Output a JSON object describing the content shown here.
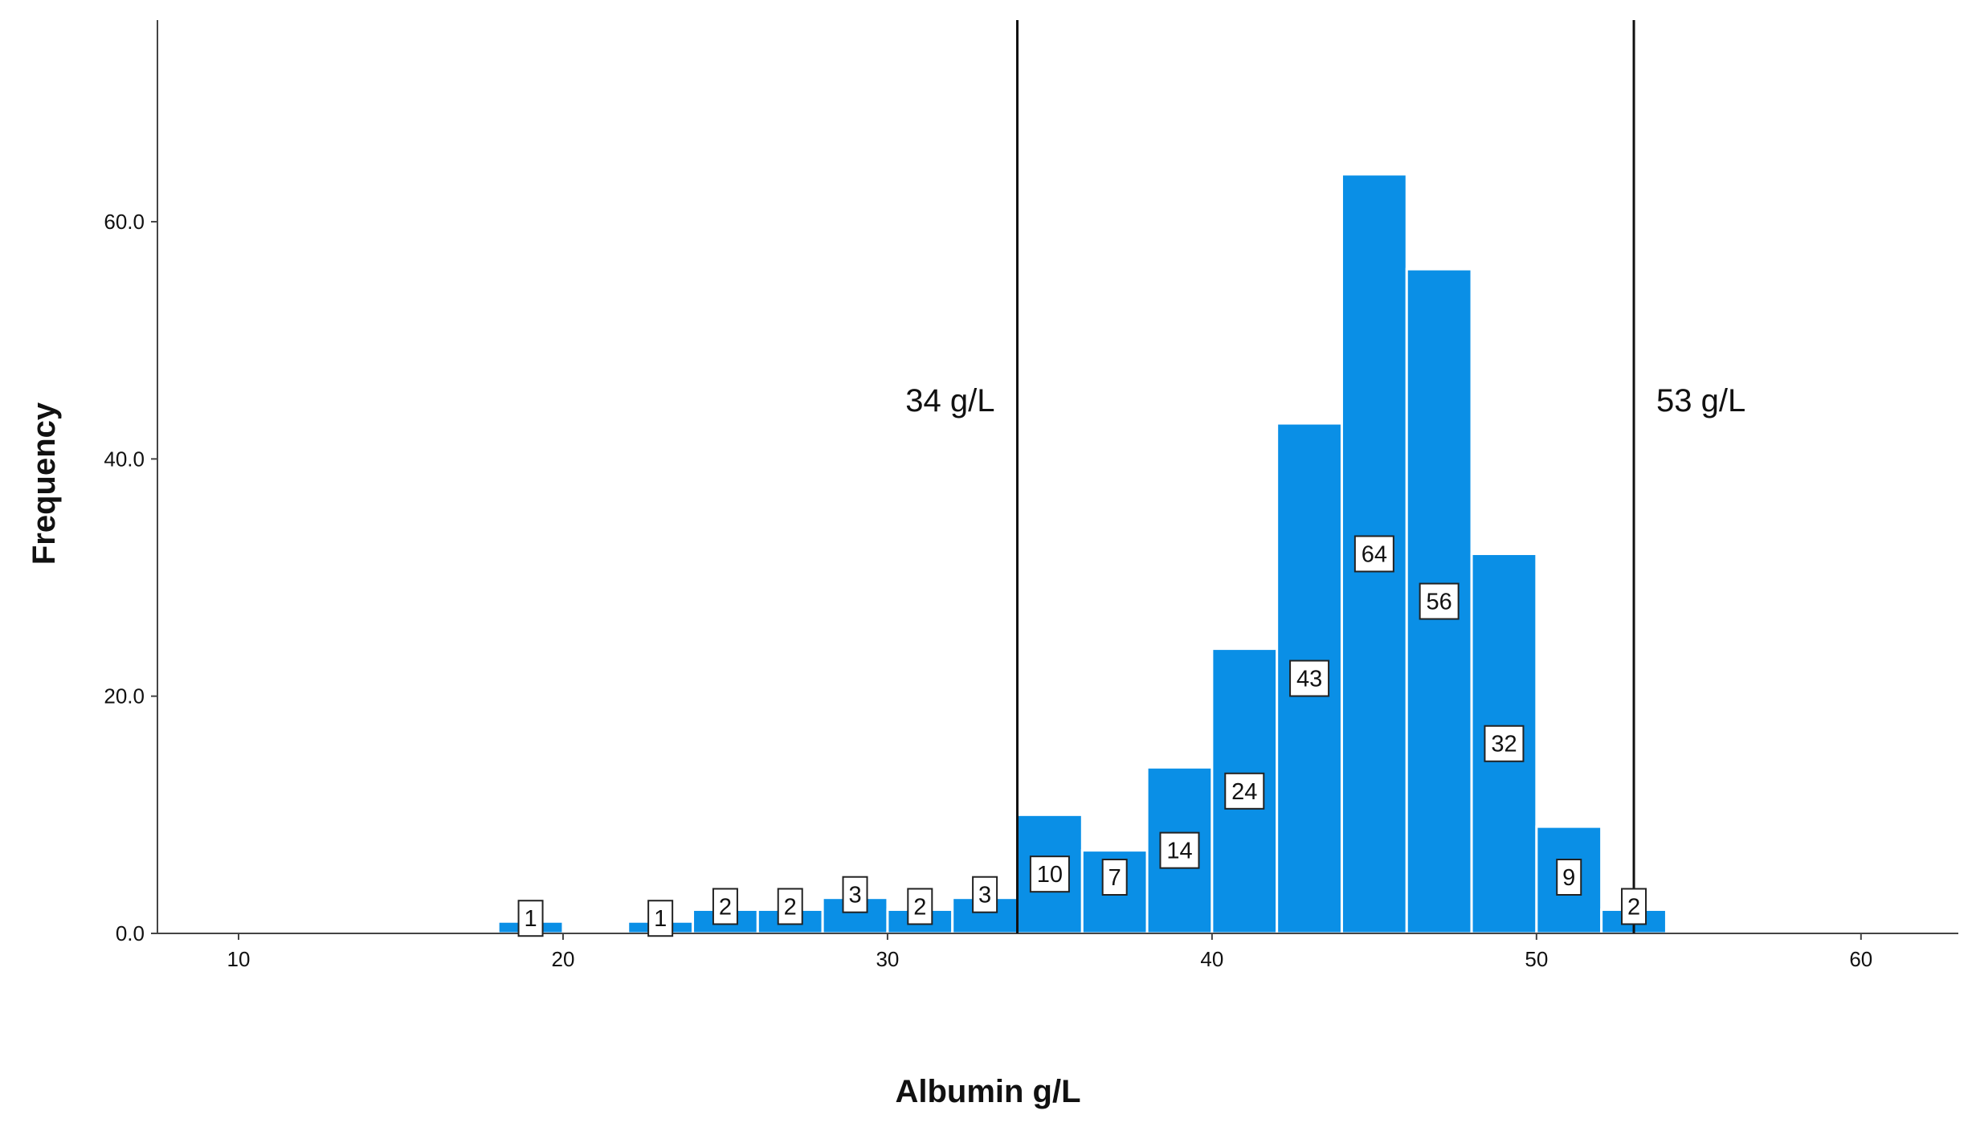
{
  "chart_data": {
    "type": "bar",
    "title": "",
    "xlabel": "Albumin g/L",
    "ylabel": "Frequency",
    "xlim": [
      7.5,
      63
    ],
    "ylim": [
      0,
      77
    ],
    "x_ticks": [
      10,
      20,
      30,
      40,
      50,
      60
    ],
    "x_tick_labels": [
      "10",
      "20",
      "30",
      "40",
      "50",
      "60"
    ],
    "y_ticks": [
      0,
      20,
      40,
      60
    ],
    "y_tick_labels": [
      "0.0",
      "20.0",
      "40.0",
      "60.0"
    ],
    "bin_width": 2,
    "bar_color": "#0a8fe6",
    "bar_edge_color": "#ffffff",
    "grid": false,
    "bins": [
      {
        "x_start": 18,
        "x_end": 20,
        "value": 1,
        "label": "1"
      },
      {
        "x_start": 22,
        "x_end": 24,
        "value": 1,
        "label": "1"
      },
      {
        "x_start": 24,
        "x_end": 26,
        "value": 2,
        "label": "2"
      },
      {
        "x_start": 26,
        "x_end": 28,
        "value": 2,
        "label": "2"
      },
      {
        "x_start": 28,
        "x_end": 30,
        "value": 3,
        "label": "3"
      },
      {
        "x_start": 30,
        "x_end": 32,
        "value": 2,
        "label": "2"
      },
      {
        "x_start": 32,
        "x_end": 34,
        "value": 3,
        "label": "3"
      },
      {
        "x_start": 34,
        "x_end": 36,
        "value": 10,
        "label": "10"
      },
      {
        "x_start": 36,
        "x_end": 38,
        "value": 7,
        "label": "7"
      },
      {
        "x_start": 38,
        "x_end": 40,
        "value": 14,
        "label": "14"
      },
      {
        "x_start": 40,
        "x_end": 42,
        "value": 24,
        "label": "24"
      },
      {
        "x_start": 42,
        "x_end": 44,
        "value": 43,
        "label": "43"
      },
      {
        "x_start": 44,
        "x_end": 46,
        "value": 64,
        "label": "64"
      },
      {
        "x_start": 46,
        "x_end": 48,
        "value": 56,
        "label": "56"
      },
      {
        "x_start": 48,
        "x_end": 50,
        "value": 32,
        "label": "32"
      },
      {
        "x_start": 50,
        "x_end": 52,
        "value": 9,
        "label": "9"
      },
      {
        "x_start": 52,
        "x_end": 54,
        "value": 2,
        "label": "2"
      }
    ],
    "reference_lines": [
      {
        "x": 34,
        "label": "34 g/L",
        "label_side": "left"
      },
      {
        "x": 53,
        "label": "53 g/L",
        "label_side": "right"
      }
    ]
  }
}
